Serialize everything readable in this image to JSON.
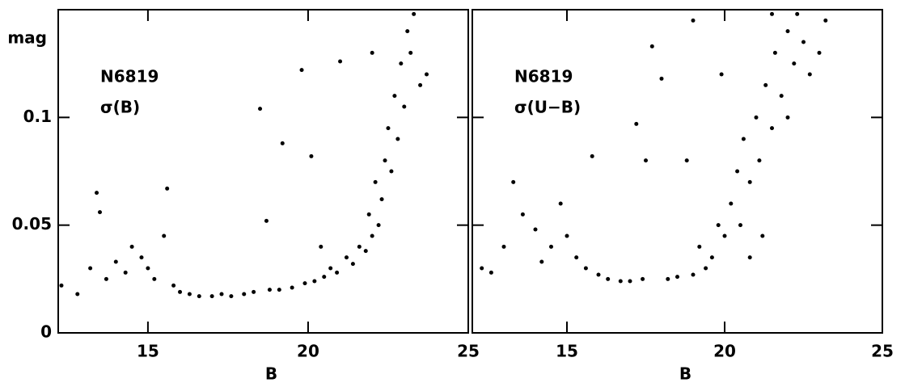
{
  "chart_data": [
    {
      "type": "scatter",
      "xlabel": "B",
      "ylabel": "mag",
      "annotations": [
        "N6819",
        "σ(B)"
      ],
      "xlim": [
        12.2,
        25
      ],
      "ylim": [
        0,
        0.15
      ],
      "xticks": [
        15,
        20,
        25
      ],
      "yticks": [
        0,
        0.05,
        0.1
      ],
      "color": "#000000",
      "x": [
        12.3,
        12.8,
        13.2,
        13.4,
        13.5,
        13.7,
        14.0,
        14.3,
        14.5,
        14.8,
        15.0,
        15.2,
        15.5,
        15.6,
        15.8,
        16.0,
        16.3,
        16.6,
        17.0,
        17.3,
        17.6,
        18.0,
        18.3,
        18.5,
        18.7,
        18.8,
        19.1,
        19.2,
        19.5,
        19.8,
        19.9,
        20.1,
        20.2,
        20.4,
        20.5,
        20.7,
        20.9,
        21.0,
        21.2,
        21.4,
        21.6,
        21.8,
        21.9,
        22.0,
        22.1,
        22.2,
        22.3,
        22.4,
        22.5,
        22.6,
        22.7,
        22.8,
        22.9,
        23.0,
        23.1,
        23.2,
        23.3,
        23.5,
        23.7,
        22.0
      ],
      "y": [
        0.022,
        0.018,
        0.03,
        0.065,
        0.056,
        0.025,
        0.033,
        0.028,
        0.04,
        0.035,
        0.03,
        0.025,
        0.045,
        0.067,
        0.022,
        0.019,
        0.018,
        0.017,
        0.017,
        0.018,
        0.017,
        0.018,
        0.019,
        0.104,
        0.052,
        0.02,
        0.02,
        0.088,
        0.021,
        0.122,
        0.023,
        0.082,
        0.024,
        0.04,
        0.026,
        0.03,
        0.028,
        0.126,
        0.035,
        0.032,
        0.04,
        0.038,
        0.055,
        0.045,
        0.07,
        0.05,
        0.062,
        0.08,
        0.095,
        0.075,
        0.11,
        0.09,
        0.125,
        0.105,
        0.14,
        0.13,
        0.148,
        0.115,
        0.12,
        0.13
      ]
    },
    {
      "type": "scatter",
      "xlabel": "B",
      "annotations": [
        "N6819",
        "σ(U−B)"
      ],
      "xlim": [
        12,
        25
      ],
      "ylim": [
        0,
        0.15
      ],
      "xticks": [
        15,
        20,
        25
      ],
      "yticks": [
        0,
        0.05,
        0.1
      ],
      "color": "#000000",
      "x": [
        12.3,
        12.6,
        13.0,
        13.3,
        13.6,
        14.0,
        14.2,
        14.5,
        14.8,
        15.0,
        15.3,
        15.6,
        15.8,
        16.0,
        16.3,
        16.7,
        17.0,
        17.2,
        17.4,
        17.5,
        17.7,
        18.0,
        18.2,
        18.5,
        18.8,
        19.0,
        19.2,
        19.4,
        19.6,
        19.8,
        19.9,
        20.0,
        20.2,
        20.4,
        20.5,
        20.6,
        20.8,
        21.0,
        21.1,
        21.3,
        21.5,
        21.6,
        21.8,
        22.0,
        22.2,
        22.3,
        22.5,
        22.7,
        23.0,
        23.2,
        21.5,
        20.8,
        21.2,
        22.0,
        19.0
      ],
      "y": [
        0.03,
        0.028,
        0.04,
        0.07,
        0.055,
        0.048,
        0.033,
        0.04,
        0.06,
        0.045,
        0.035,
        0.03,
        0.082,
        0.027,
        0.025,
        0.024,
        0.024,
        0.097,
        0.025,
        0.08,
        0.133,
        0.118,
        0.025,
        0.026,
        0.08,
        0.027,
        0.04,
        0.03,
        0.035,
        0.05,
        0.12,
        0.045,
        0.06,
        0.075,
        0.05,
        0.09,
        0.07,
        0.1,
        0.08,
        0.115,
        0.095,
        0.13,
        0.11,
        0.14,
        0.125,
        0.148,
        0.135,
        0.12,
        0.13,
        0.145,
        0.148,
        0.035,
        0.045,
        0.1,
        0.145
      ]
    }
  ]
}
